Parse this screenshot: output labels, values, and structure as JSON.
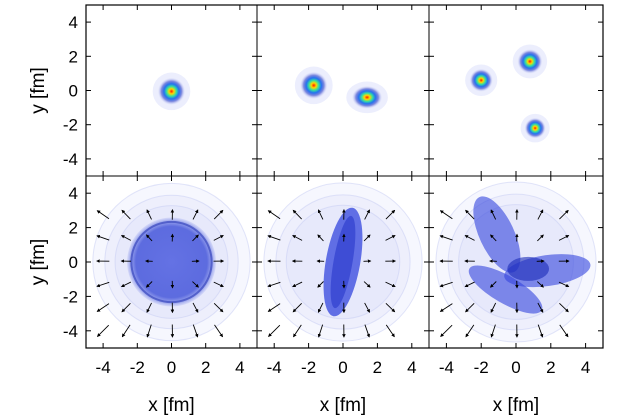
{
  "chart_data": {
    "type": "heatmap",
    "layout": {
      "rows": 2,
      "cols": 3
    },
    "axes": {
      "xlabel": "x [fm]",
      "ylabel": "y [fm]",
      "xlim": [
        -5,
        5
      ],
      "ylim": [
        -5,
        5
      ],
      "xticks": [
        -4,
        -2,
        0,
        2,
        4
      ],
      "yticks": [
        -4,
        -2,
        0,
        2,
        4
      ]
    },
    "panels": [
      {
        "row": 0,
        "col": 0,
        "kind": "density",
        "hotspots": [
          {
            "x": 0.0,
            "y": -0.05,
            "sx": 0.5,
            "sy": 0.5
          }
        ]
      },
      {
        "row": 0,
        "col": 1,
        "kind": "density",
        "hotspots": [
          {
            "x": -1.7,
            "y": 0.3,
            "sx": 0.5,
            "sy": 0.5
          },
          {
            "x": 1.4,
            "y": -0.4,
            "sx": 0.55,
            "sy": 0.42
          }
        ]
      },
      {
        "row": 0,
        "col": 2,
        "kind": "density",
        "hotspots": [
          {
            "x": -2.0,
            "y": 0.6,
            "sx": 0.42,
            "sy": 0.42
          },
          {
            "x": 0.8,
            "y": 1.7,
            "sx": 0.45,
            "sy": 0.45
          },
          {
            "x": 1.1,
            "y": -2.2,
            "sx": 0.38,
            "sy": 0.38
          }
        ]
      },
      {
        "row": 1,
        "col": 0,
        "kind": "flow",
        "shape": "disk",
        "radius": 2.6
      },
      {
        "row": 1,
        "col": 1,
        "kind": "flow",
        "shape": "ellipse",
        "cx": 0.0,
        "cy": 0.0,
        "rx": 1.0,
        "ry": 3.2,
        "angle": 80
      },
      {
        "row": 1,
        "col": 2,
        "kind": "flow",
        "shape": "three-lobes",
        "lobes": [
          {
            "cx": -1.1,
            "cy": 1.6,
            "rx": 1.0,
            "ry": 2.4,
            "angle": -25
          },
          {
            "cx": 1.8,
            "cy": -0.5,
            "rx": 2.5,
            "ry": 0.9,
            "angle": -8
          },
          {
            "cx": -0.6,
            "cy": -1.6,
            "rx": 2.4,
            "ry": 0.8,
            "angle": 30
          }
        ]
      }
    ],
    "colors": {
      "background": "#ffffff",
      "frame": "#000000",
      "flow_fill": "#3344dd",
      "arrow": "#000000"
    }
  }
}
